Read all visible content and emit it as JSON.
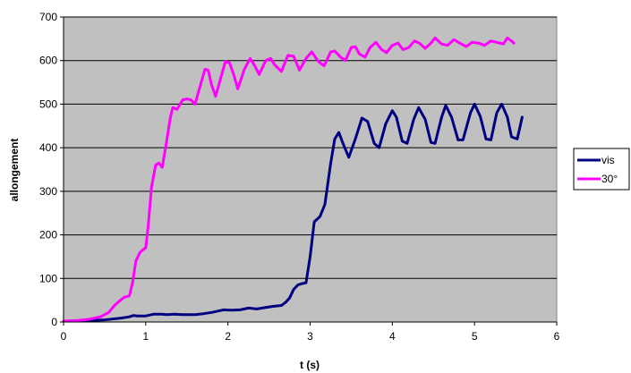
{
  "chart_data": {
    "type": "line",
    "title": "",
    "xlabel": "t (s)",
    "ylabel": "allongement",
    "xlim": [
      0,
      6
    ],
    "ylim": [
      0,
      700
    ],
    "x_ticks": [
      "0",
      "1",
      "2",
      "3",
      "4",
      "5",
      "6"
    ],
    "y_ticks": [
      "0",
      "100",
      "200",
      "300",
      "400",
      "500",
      "600",
      "700"
    ],
    "grid": "horizontal",
    "plot_background": "#c0c0c0",
    "legend_position": "right",
    "series": [
      {
        "name": "vis",
        "color": "#000080",
        "points": [
          [
            0,
            2
          ],
          [
            0.3,
            3
          ],
          [
            0.5,
            5
          ],
          [
            0.7,
            9
          ],
          [
            0.8,
            12
          ],
          [
            0.85,
            15
          ],
          [
            0.9,
            14
          ],
          [
            1.0,
            14
          ],
          [
            1.05,
            16
          ],
          [
            1.1,
            18
          ],
          [
            1.2,
            18
          ],
          [
            1.25,
            17
          ],
          [
            1.35,
            18
          ],
          [
            1.45,
            17
          ],
          [
            1.6,
            17
          ],
          [
            1.7,
            19
          ],
          [
            1.8,
            22
          ],
          [
            1.9,
            26
          ],
          [
            1.95,
            28
          ],
          [
            2.05,
            27
          ],
          [
            2.15,
            28
          ],
          [
            2.25,
            32
          ],
          [
            2.35,
            30
          ],
          [
            2.45,
            33
          ],
          [
            2.55,
            36
          ],
          [
            2.65,
            38
          ],
          [
            2.7,
            45
          ],
          [
            2.75,
            55
          ],
          [
            2.8,
            75
          ],
          [
            2.85,
            85
          ],
          [
            2.9,
            88
          ],
          [
            2.95,
            90
          ],
          [
            3.0,
            150
          ],
          [
            3.05,
            230
          ],
          [
            3.12,
            242
          ],
          [
            3.18,
            270
          ],
          [
            3.25,
            365
          ],
          [
            3.3,
            420
          ],
          [
            3.35,
            435
          ],
          [
            3.4,
            410
          ],
          [
            3.47,
            378
          ],
          [
            3.55,
            420
          ],
          [
            3.63,
            468
          ],
          [
            3.7,
            460
          ],
          [
            3.78,
            410
          ],
          [
            3.84,
            400
          ],
          [
            3.92,
            455
          ],
          [
            4.0,
            485
          ],
          [
            4.05,
            470
          ],
          [
            4.12,
            415
          ],
          [
            4.18,
            410
          ],
          [
            4.26,
            465
          ],
          [
            4.32,
            492
          ],
          [
            4.4,
            465
          ],
          [
            4.47,
            412
          ],
          [
            4.52,
            410
          ],
          [
            4.6,
            470
          ],
          [
            4.65,
            497
          ],
          [
            4.72,
            470
          ],
          [
            4.8,
            418
          ],
          [
            4.86,
            418
          ],
          [
            4.95,
            480
          ],
          [
            5.0,
            500
          ],
          [
            5.07,
            472
          ],
          [
            5.14,
            420
          ],
          [
            5.2,
            418
          ],
          [
            5.27,
            480
          ],
          [
            5.33,
            500
          ],
          [
            5.4,
            470
          ],
          [
            5.45,
            425
          ],
          [
            5.52,
            420
          ],
          [
            5.58,
            470
          ]
        ]
      },
      {
        "name": "30°",
        "color": "#ff00ff",
        "points": [
          [
            0,
            2
          ],
          [
            0.15,
            3
          ],
          [
            0.3,
            6
          ],
          [
            0.45,
            12
          ],
          [
            0.55,
            22
          ],
          [
            0.62,
            38
          ],
          [
            0.68,
            48
          ],
          [
            0.74,
            57
          ],
          [
            0.8,
            60
          ],
          [
            0.84,
            90
          ],
          [
            0.88,
            140
          ],
          [
            0.93,
            160
          ],
          [
            0.98,
            168
          ],
          [
            1.0,
            170
          ],
          [
            1.03,
            220
          ],
          [
            1.07,
            310
          ],
          [
            1.12,
            360
          ],
          [
            1.16,
            365
          ],
          [
            1.2,
            355
          ],
          [
            1.25,
            410
          ],
          [
            1.3,
            470
          ],
          [
            1.33,
            492
          ],
          [
            1.38,
            488
          ],
          [
            1.45,
            510
          ],
          [
            1.5,
            512
          ],
          [
            1.55,
            510
          ],
          [
            1.6,
            500
          ],
          [
            1.66,
            540
          ],
          [
            1.72,
            580
          ],
          [
            1.76,
            578
          ],
          [
            1.8,
            545
          ],
          [
            1.85,
            518
          ],
          [
            1.92,
            565
          ],
          [
            1.97,
            598
          ],
          [
            2.02,
            595
          ],
          [
            2.07,
            568
          ],
          [
            2.12,
            535
          ],
          [
            2.2,
            580
          ],
          [
            2.27,
            605
          ],
          [
            2.32,
            590
          ],
          [
            2.38,
            568
          ],
          [
            2.46,
            600
          ],
          [
            2.52,
            605
          ],
          [
            2.57,
            590
          ],
          [
            2.65,
            575
          ],
          [
            2.73,
            612
          ],
          [
            2.8,
            610
          ],
          [
            2.87,
            578
          ],
          [
            2.95,
            605
          ],
          [
            3.02,
            620
          ],
          [
            3.1,
            598
          ],
          [
            3.17,
            588
          ],
          [
            3.25,
            620
          ],
          [
            3.3,
            622
          ],
          [
            3.37,
            608
          ],
          [
            3.43,
            600
          ],
          [
            3.5,
            630
          ],
          [
            3.55,
            632
          ],
          [
            3.6,
            615
          ],
          [
            3.67,
            608
          ],
          [
            3.73,
            630
          ],
          [
            3.8,
            642
          ],
          [
            3.87,
            625
          ],
          [
            3.93,
            618
          ],
          [
            4.0,
            635
          ],
          [
            4.07,
            640
          ],
          [
            4.13,
            625
          ],
          [
            4.2,
            630
          ],
          [
            4.27,
            645
          ],
          [
            4.33,
            640
          ],
          [
            4.4,
            628
          ],
          [
            4.47,
            640
          ],
          [
            4.52,
            652
          ],
          [
            4.6,
            638
          ],
          [
            4.67,
            635
          ],
          [
            4.75,
            648
          ],
          [
            4.82,
            640
          ],
          [
            4.9,
            632
          ],
          [
            4.97,
            642
          ],
          [
            5.05,
            640
          ],
          [
            5.12,
            635
          ],
          [
            5.2,
            645
          ],
          [
            5.27,
            642
          ],
          [
            5.35,
            638
          ],
          [
            5.4,
            652
          ],
          [
            5.45,
            645
          ],
          [
            5.48,
            640
          ]
        ]
      }
    ]
  }
}
